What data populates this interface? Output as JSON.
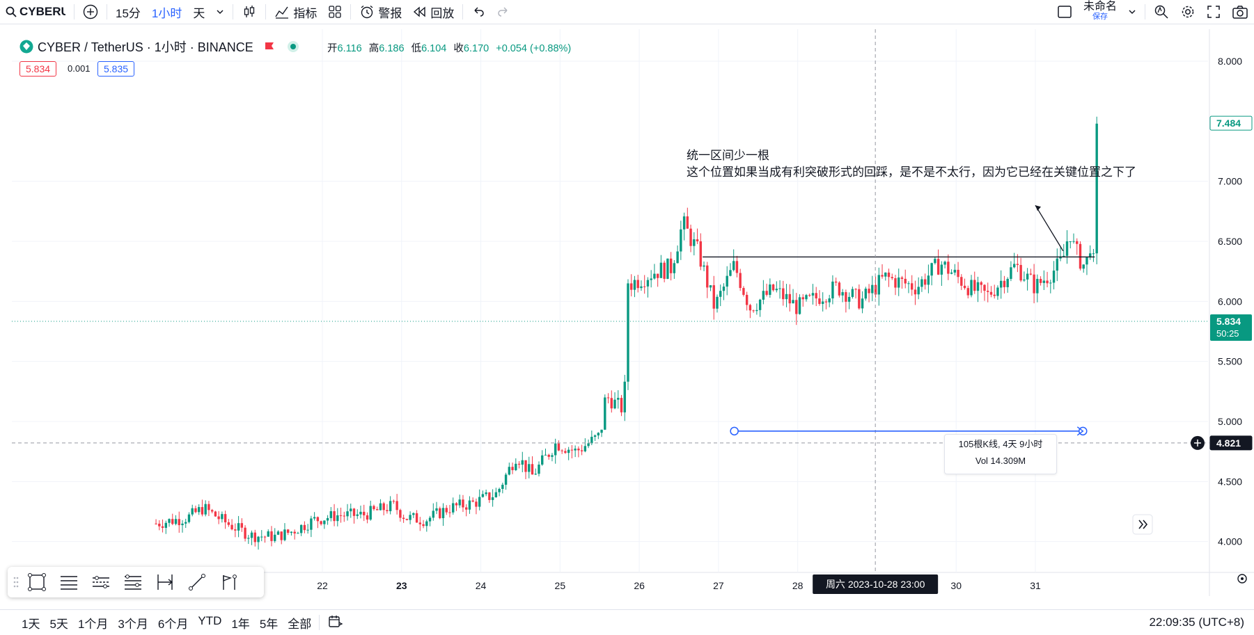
{
  "toolbar": {
    "symbol": "CYBERUSI",
    "interval_15m": "15分",
    "interval_1h": "1小时",
    "interval_day": "天",
    "indicators": "指标",
    "alert": "警报",
    "replay": "回放",
    "layout_name": "未命名",
    "save_label": "保存"
  },
  "legend": {
    "title": "CYBER / TetherUS · 1小时 · BINANCE",
    "open_label": "开",
    "open": "6.116",
    "high_label": "高",
    "high": "6.186",
    "low_label": "低",
    "low": "6.104",
    "close_label": "收",
    "close": "6.170",
    "change": "+0.054 (+0.88%)",
    "bid": "5.834",
    "spread": "0.001",
    "ask": "5.835"
  },
  "annotation": {
    "line1": "统一区间少一根",
    "line2": "这个位置如果当成有利突破形式的回踩，是不是不太行，因为它已经在关键位置之下了"
  },
  "measure": {
    "bars": "105根K线, 4天 9小时",
    "vol": "Vol 14.309M"
  },
  "crosshair_label": "周六 2023-10-28   23:00",
  "price_labels": {
    "last": "7.484",
    "current": "5.834",
    "countdown": "50:25",
    "crosshair": "4.821"
  },
  "bottombar": {
    "ranges": [
      "1天",
      "5天",
      "1个月",
      "3个月",
      "6个月",
      "YTD",
      "1年",
      "5年",
      "全部"
    ],
    "clock": "22:09:35 (UTC+8)"
  },
  "colors": {
    "up": "#089981",
    "down": "#f23645",
    "accent": "#2962ff"
  },
  "chart_data": {
    "type": "candlestick",
    "title": "CYBER / TetherUS · 1小时 · BINANCE",
    "x_ticks": [
      "22",
      "23",
      "24",
      "25",
      "26",
      "27",
      "28",
      "30",
      "31"
    ],
    "y_ticks": [
      "8.000",
      "7.000",
      "6.500",
      "6.000",
      "5.500",
      "5.000",
      "4.500",
      "4.000"
    ],
    "ylim": [
      3.75,
      8.05
    ],
    "x_tick_positions_day": [
      22,
      23,
      24,
      25,
      26,
      27,
      28,
      30,
      31
    ],
    "horizontal_level": 6.37,
    "crosshair_price": 4.821,
    "current_price": 5.834,
    "path": [
      {
        "day": 19.9,
        "price": 4.15
      },
      {
        "day": 20.3,
        "price": 4.2
      },
      {
        "day": 20.5,
        "price": 4.28
      },
      {
        "day": 20.8,
        "price": 4.15
      },
      {
        "day": 21.1,
        "price": 4.05
      },
      {
        "day": 21.4,
        "price": 4.04
      },
      {
        "day": 21.6,
        "price": 4.08
      },
      {
        "day": 21.9,
        "price": 4.18
      },
      {
        "day": 22.2,
        "price": 4.22
      },
      {
        "day": 22.5,
        "price": 4.22
      },
      {
        "day": 22.9,
        "price": 4.3
      },
      {
        "day": 23.05,
        "price": 4.2
      },
      {
        "day": 23.3,
        "price": 4.18
      },
      {
        "day": 23.6,
        "price": 4.28
      },
      {
        "day": 23.9,
        "price": 4.32
      },
      {
        "day": 24.2,
        "price": 4.4
      },
      {
        "day": 24.45,
        "price": 4.72
      },
      {
        "day": 24.65,
        "price": 4.55
      },
      {
        "day": 24.95,
        "price": 4.82
      },
      {
        "day": 25.2,
        "price": 4.75
      },
      {
        "day": 25.5,
        "price": 4.88
      },
      {
        "day": 25.6,
        "price": 5.2
      },
      {
        "day": 25.8,
        "price": 5.1
      },
      {
        "day": 25.9,
        "price": 6.15
      },
      {
        "day": 26.2,
        "price": 6.25
      },
      {
        "day": 26.4,
        "price": 6.28
      },
      {
        "day": 26.55,
        "price": 6.65
      },
      {
        "day": 26.75,
        "price": 6.4
      },
      {
        "day": 26.95,
        "price": 5.95
      },
      {
        "day": 27.2,
        "price": 6.3
      },
      {
        "day": 27.4,
        "price": 5.95
      },
      {
        "day": 27.7,
        "price": 6.1
      },
      {
        "day": 28.0,
        "price": 5.95
      },
      {
        "day": 28.5,
        "price": 6.12
      },
      {
        "day": 28.8,
        "price": 6.0
      },
      {
        "day": 29.1,
        "price": 6.2
      },
      {
        "day": 29.5,
        "price": 6.12
      },
      {
        "day": 29.8,
        "price": 6.32
      },
      {
        "day": 30.2,
        "price": 6.1
      },
      {
        "day": 30.4,
        "price": 6.05
      },
      {
        "day": 30.75,
        "price": 6.3
      },
      {
        "day": 31.0,
        "price": 6.12
      },
      {
        "day": 31.3,
        "price": 6.3
      },
      {
        "day": 31.45,
        "price": 6.5
      },
      {
        "day": 31.6,
        "price": 6.3
      },
      {
        "day": 31.75,
        "price": 6.4
      },
      {
        "day": 31.8,
        "price": 7.48
      }
    ]
  }
}
